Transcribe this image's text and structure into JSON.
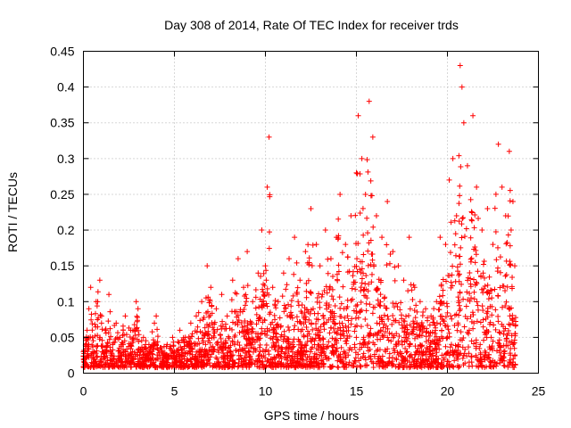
{
  "chart_data": {
    "type": "scatter",
    "title": "Day 308 of 2014, Rate Of TEC Index for receiver trds",
    "xlabel": "GPS time / hours",
    "ylabel": "ROTI / TECUs",
    "xlim": [
      0,
      25
    ],
    "ylim": [
      0,
      0.45
    ],
    "x_ticks": [
      "0",
      "5",
      "10",
      "15",
      "20",
      "25"
    ],
    "y_ticks": [
      "0",
      "0.05",
      "0.1",
      "0.15",
      "0.2",
      "0.25",
      "0.3",
      "0.35",
      "0.4",
      "0.45"
    ],
    "grid": true,
    "marker": "plus",
    "marker_color": "#ff0000",
    "series": [
      {
        "name": "ROTI",
        "points": [
          [
            0.0,
            0.03
          ],
          [
            0.2,
            0.06
          ],
          [
            0.3,
            0.09
          ],
          [
            0.4,
            0.12
          ],
          [
            0.5,
            0.05
          ],
          [
            0.7,
            0.1
          ],
          [
            0.9,
            0.13
          ],
          [
            1.0,
            0.08
          ],
          [
            1.2,
            0.06
          ],
          [
            1.4,
            0.11
          ],
          [
            1.6,
            0.04
          ],
          [
            1.8,
            0.07
          ],
          [
            2.0,
            0.05
          ],
          [
            2.3,
            0.08
          ],
          [
            2.6,
            0.06
          ],
          [
            2.9,
            0.1
          ],
          [
            3.0,
            0.09
          ],
          [
            3.3,
            0.05
          ],
          [
            3.6,
            0.04
          ],
          [
            3.9,
            0.07
          ],
          [
            4.0,
            0.08
          ],
          [
            4.3,
            0.03
          ],
          [
            4.6,
            0.04
          ],
          [
            4.9,
            0.05
          ],
          [
            5.0,
            0.03
          ],
          [
            5.3,
            0.06
          ],
          [
            5.6,
            0.05
          ],
          [
            5.9,
            0.07
          ],
          [
            6.2,
            0.08
          ],
          [
            6.5,
            0.1
          ],
          [
            6.8,
            0.15
          ],
          [
            7.0,
            0.12
          ],
          [
            7.3,
            0.09
          ],
          [
            7.6,
            0.11
          ],
          [
            7.9,
            0.08
          ],
          [
            8.2,
            0.13
          ],
          [
            8.5,
            0.16
          ],
          [
            8.8,
            0.12
          ],
          [
            9.0,
            0.17
          ],
          [
            9.3,
            0.1
          ],
          [
            9.6,
            0.14
          ],
          [
            9.8,
            0.2
          ],
          [
            10.0,
            0.15
          ],
          [
            10.1,
            0.26
          ],
          [
            10.2,
            0.33
          ],
          [
            10.4,
            0.12
          ],
          [
            10.7,
            0.1
          ],
          [
            11.0,
            0.14
          ],
          [
            11.3,
            0.16
          ],
          [
            11.6,
            0.19
          ],
          [
            11.9,
            0.13
          ],
          [
            12.2,
            0.17
          ],
          [
            12.5,
            0.23
          ],
          [
            12.8,
            0.18
          ],
          [
            13.0,
            0.15
          ],
          [
            13.3,
            0.2
          ],
          [
            13.6,
            0.16
          ],
          [
            13.9,
            0.19
          ],
          [
            14.1,
            0.25
          ],
          [
            14.4,
            0.18
          ],
          [
            14.7,
            0.22
          ],
          [
            15.0,
            0.28
          ],
          [
            15.1,
            0.36
          ],
          [
            15.3,
            0.3
          ],
          [
            15.5,
            0.25
          ],
          [
            15.7,
            0.38
          ],
          [
            15.9,
            0.33
          ],
          [
            16.1,
            0.22
          ],
          [
            16.4,
            0.19
          ],
          [
            16.7,
            0.24
          ],
          [
            17.0,
            0.17
          ],
          [
            17.3,
            0.15
          ],
          [
            17.6,
            0.13
          ],
          [
            17.9,
            0.19
          ],
          [
            18.2,
            0.12
          ],
          [
            18.5,
            0.1
          ],
          [
            18.8,
            0.09
          ],
          [
            19.1,
            0.08
          ],
          [
            19.4,
            0.1
          ],
          [
            19.6,
            0.19
          ],
          [
            19.9,
            0.18
          ],
          [
            20.1,
            0.27
          ],
          [
            20.3,
            0.3
          ],
          [
            20.5,
            0.22
          ],
          [
            20.7,
            0.43
          ],
          [
            20.8,
            0.4
          ],
          [
            20.9,
            0.35
          ],
          [
            21.1,
            0.29
          ],
          [
            21.4,
            0.36
          ],
          [
            21.6,
            0.26
          ],
          [
            21.9,
            0.2
          ],
          [
            22.2,
            0.23
          ],
          [
            22.5,
            0.18
          ],
          [
            22.8,
            0.32
          ],
          [
            23.0,
            0.26
          ],
          [
            23.2,
            0.22
          ],
          [
            23.4,
            0.31
          ],
          [
            23.5,
            0.2
          ],
          [
            23.6,
            0.24
          ],
          [
            23.7,
            0.15
          ],
          [
            0.1,
            0.02
          ],
          [
            0.6,
            0.03
          ],
          [
            1.1,
            0.02
          ],
          [
            1.5,
            0.03
          ],
          [
            2.1,
            0.02
          ],
          [
            2.7,
            0.03
          ],
          [
            3.1,
            0.02
          ],
          [
            3.7,
            0.02
          ],
          [
            4.1,
            0.02
          ],
          [
            4.7,
            0.01
          ],
          [
            5.1,
            0.02
          ],
          [
            5.7,
            0.02
          ],
          [
            6.1,
            0.02
          ],
          [
            6.7,
            0.03
          ],
          [
            7.1,
            0.03
          ],
          [
            7.7,
            0.02
          ],
          [
            8.1,
            0.03
          ],
          [
            8.7,
            0.02
          ],
          [
            9.1,
            0.03
          ],
          [
            9.7,
            0.03
          ],
          [
            10.3,
            0.02
          ],
          [
            10.9,
            0.03
          ],
          [
            11.5,
            0.04
          ],
          [
            12.1,
            0.03
          ],
          [
            12.7,
            0.04
          ],
          [
            13.2,
            0.03
          ],
          [
            13.8,
            0.04
          ],
          [
            14.3,
            0.03
          ],
          [
            14.9,
            0.04
          ],
          [
            15.4,
            0.05
          ],
          [
            16.0,
            0.04
          ],
          [
            16.6,
            0.03
          ],
          [
            17.2,
            0.04
          ],
          [
            17.8,
            0.03
          ],
          [
            18.4,
            0.02
          ],
          [
            19.0,
            0.03
          ],
          [
            19.5,
            0.02
          ],
          [
            20.0,
            0.05
          ],
          [
            20.6,
            0.04
          ],
          [
            21.2,
            0.06
          ],
          [
            21.8,
            0.04
          ],
          [
            22.4,
            0.05
          ],
          [
            23.1,
            0.03
          ],
          [
            23.6,
            0.04
          ]
        ]
      }
    ]
  }
}
